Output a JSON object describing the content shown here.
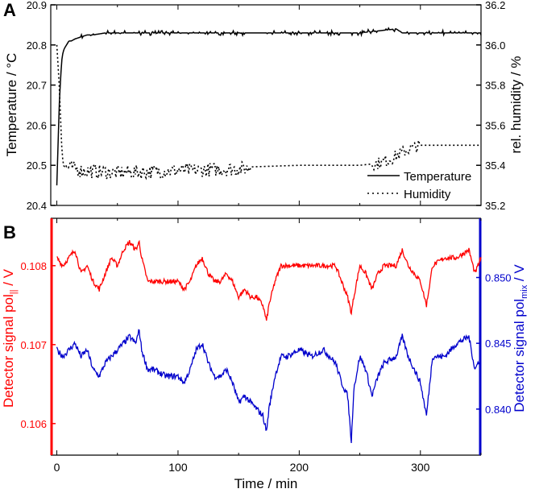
{
  "chart_data": [
    {
      "panel": "A",
      "type": "line",
      "xlim": [
        -5,
        350
      ],
      "ylim": [
        20.4,
        20.9
      ],
      "y2lim": [
        35.2,
        36.2
      ],
      "ylabel": "Temperature / °C",
      "y2label": "rel. humidity / %",
      "yticks": [
        "20.4",
        "20.5",
        "20.6",
        "20.7",
        "20.8",
        "20.9"
      ],
      "y2ticks": [
        "35.2",
        "35.4",
        "35.6",
        "35.8",
        "36.0",
        "36.2"
      ],
      "legend_position": "bottom-right",
      "legend": [
        "Temperature",
        "Humidity"
      ],
      "series": [
        {
          "name": "Temperature",
          "axis": "left",
          "style": "solid",
          "color": "#000000",
          "x": [
            0,
            1,
            2,
            3,
            4,
            5,
            6,
            8,
            10,
            12,
            15,
            20,
            25,
            30,
            40,
            60,
            80,
            100,
            150,
            200,
            250,
            280,
            285,
            300,
            350
          ],
          "y": [
            20.45,
            20.55,
            20.65,
            20.71,
            20.76,
            20.78,
            20.79,
            20.8,
            20.81,
            20.81,
            20.815,
            20.82,
            20.825,
            20.825,
            20.83,
            20.83,
            20.83,
            20.83,
            20.83,
            20.83,
            20.83,
            20.84,
            20.83,
            20.83,
            20.83
          ]
        },
        {
          "name": "Humidity",
          "axis": "right",
          "style": "dotted",
          "color": "#000000",
          "x": [
            0,
            1,
            2,
            3,
            4,
            5,
            7,
            10,
            20,
            50,
            100,
            150,
            200,
            250,
            265,
            275,
            290,
            300,
            350
          ],
          "y": [
            36.0,
            35.9,
            35.8,
            35.65,
            35.5,
            35.42,
            35.4,
            35.4,
            35.38,
            35.37,
            35.38,
            35.39,
            35.4,
            35.4,
            35.41,
            35.43,
            35.48,
            35.5,
            35.5
          ]
        }
      ]
    },
    {
      "panel": "B",
      "type": "line",
      "xlim": [
        -5,
        350
      ],
      "ylim": [
        0.1056,
        0.1086
      ],
      "y2lim": [
        0.8365,
        0.8545
      ],
      "xlabel": "Time / min",
      "xticks": [
        "0",
        "100",
        "200",
        "300"
      ],
      "yticks": [
        "0.106",
        "0.107",
        "0.108"
      ],
      "y2ticks": [
        "0.840",
        "0.845",
        "0.850"
      ],
      "ylabel_main": "Detector signal pol",
      "ylabel_sub": "||",
      "ylabel_unit": " / V",
      "y2label_main": "Detector signal pol",
      "y2label_sub": "mix",
      "y2label_unit": " / V",
      "left_axis_color": "#ff0000",
      "right_axis_color": "#0000cc",
      "series": [
        {
          "name": "pol||",
          "axis": "left",
          "color": "#ff0000",
          "x": [
            0,
            5,
            10,
            15,
            20,
            25,
            30,
            35,
            40,
            45,
            50,
            55,
            60,
            65,
            68,
            70,
            75,
            80,
            90,
            100,
            105,
            110,
            115,
            120,
            125,
            130,
            135,
            140,
            145,
            150,
            155,
            160,
            165,
            170,
            173,
            175,
            180,
            185,
            190,
            200,
            210,
            220,
            230,
            235,
            240,
            243,
            245,
            250,
            255,
            260,
            265,
            270,
            280,
            285,
            290,
            295,
            300,
            305,
            310,
            320,
            330,
            340,
            345,
            350
          ],
          "y": [
            0.1081,
            0.108,
            0.1081,
            0.1082,
            0.1079,
            0.108,
            0.1078,
            0.1077,
            0.1079,
            0.1081,
            0.108,
            0.1082,
            0.1083,
            0.1082,
            0.1083,
            0.1081,
            0.1078,
            0.1078,
            0.1078,
            0.1078,
            0.1077,
            0.1078,
            0.108,
            0.1081,
            0.1079,
            0.1078,
            0.1078,
            0.1079,
            0.1078,
            0.1076,
            0.1077,
            0.1076,
            0.1076,
            0.1075,
            0.1073,
            0.1075,
            0.1078,
            0.108,
            0.108,
            0.108,
            0.108,
            0.108,
            0.108,
            0.1078,
            0.1076,
            0.1074,
            0.1076,
            0.108,
            0.1079,
            0.1077,
            0.1079,
            0.108,
            0.108,
            0.1082,
            0.108,
            0.1079,
            0.1078,
            0.1075,
            0.108,
            0.1081,
            0.1081,
            0.1082,
            0.1079,
            0.1081
          ]
        },
        {
          "name": "polmix",
          "axis": "right",
          "color": "#0000cc",
          "x": [
            0,
            5,
            10,
            15,
            20,
            25,
            30,
            35,
            40,
            45,
            50,
            55,
            60,
            65,
            68,
            70,
            75,
            80,
            90,
            100,
            105,
            110,
            115,
            120,
            125,
            130,
            135,
            140,
            145,
            150,
            155,
            160,
            165,
            170,
            173,
            175,
            180,
            185,
            190,
            200,
            210,
            220,
            230,
            235,
            240,
            243,
            245,
            250,
            255,
            260,
            265,
            270,
            280,
            285,
            290,
            295,
            300,
            305,
            310,
            320,
            330,
            340,
            345,
            350
          ],
          "y": [
            0.8445,
            0.844,
            0.8445,
            0.845,
            0.844,
            0.8445,
            0.843,
            0.8425,
            0.8435,
            0.844,
            0.8445,
            0.845,
            0.8455,
            0.845,
            0.846,
            0.8445,
            0.843,
            0.843,
            0.8425,
            0.8425,
            0.842,
            0.843,
            0.8445,
            0.845,
            0.8435,
            0.8425,
            0.8425,
            0.843,
            0.842,
            0.8405,
            0.841,
            0.8405,
            0.84,
            0.8395,
            0.8383,
            0.84,
            0.8425,
            0.844,
            0.844,
            0.8445,
            0.844,
            0.8445,
            0.8435,
            0.842,
            0.841,
            0.8375,
            0.8415,
            0.844,
            0.843,
            0.841,
            0.8425,
            0.8435,
            0.844,
            0.8455,
            0.844,
            0.843,
            0.842,
            0.8395,
            0.844,
            0.844,
            0.845,
            0.8455,
            0.843,
            0.844
          ]
        }
      ]
    }
  ]
}
